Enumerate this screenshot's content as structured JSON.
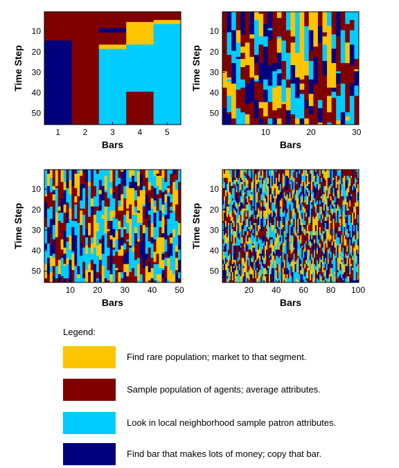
{
  "colors": {
    "rare": "#fcc500",
    "sample": "#800000",
    "local": "#00ccff",
    "copy": "#00007f"
  },
  "legend": {
    "title": "Legend:",
    "items": [
      {
        "key": "rare",
        "label": "Find rare population; market to that segment."
      },
      {
        "key": "sample",
        "label": "Sample population of agents; average attributes."
      },
      {
        "key": "local",
        "label": "Look in local neighborhood sample patron attributes."
      },
      {
        "key": "copy",
        "label": "Find bar that makes lots of money; copy that bar."
      }
    ]
  },
  "chart_data": [
    {
      "type": "heatmap",
      "xlabel": "Bars",
      "ylabel": "Time Step",
      "bars": 5,
      "steps": 55,
      "xlim": [
        0.5,
        5.5
      ],
      "ylim": [
        0.5,
        55.5
      ],
      "xticks": [
        1,
        2,
        3,
        4,
        5
      ],
      "yticks": [
        10,
        20,
        30,
        40,
        50
      ],
      "regions": [
        {
          "bar_from": 1,
          "bar_to": 5,
          "step_from": 1,
          "step_to": 55,
          "strategy": "sample"
        },
        {
          "bar_from": 1,
          "bar_to": 1,
          "step_from": 15,
          "step_to": 55,
          "strategy": "copy"
        },
        {
          "bar_from": 3,
          "bar_to": 5,
          "step_from": 19,
          "step_to": 55,
          "strategy": "local"
        },
        {
          "bar_from": 3,
          "bar_to": 3,
          "step_from": 17,
          "step_to": 18,
          "strategy": "rare"
        },
        {
          "bar_from": 3,
          "bar_to": 3,
          "step_from": 9,
          "step_to": 10,
          "strategy": "copy"
        },
        {
          "bar_from": 4,
          "bar_to": 4,
          "step_from": 6,
          "step_to": 16,
          "strategy": "rare"
        },
        {
          "bar_from": 4,
          "bar_to": 4,
          "step_from": 17,
          "step_to": 39,
          "strategy": "local"
        },
        {
          "bar_from": 4,
          "bar_to": 4,
          "step_from": 40,
          "step_to": 55,
          "strategy": "sample"
        },
        {
          "bar_from": 5,
          "bar_to": 5,
          "step_from": 5,
          "step_to": 6,
          "strategy": "rare"
        },
        {
          "bar_from": 5,
          "bar_to": 5,
          "step_from": 7,
          "step_to": 55,
          "strategy": "local"
        }
      ]
    },
    {
      "type": "heatmap",
      "xlabel": "Bars",
      "ylabel": "Time Step",
      "bars": 30,
      "steps": 55,
      "xlim": [
        0.5,
        30.5
      ],
      "ylim": [
        0.5,
        55.5
      ],
      "xticks": [
        10,
        20,
        30
      ],
      "yticks": [
        10,
        20,
        30,
        40,
        50
      ],
      "pattern": "random",
      "distribution": {
        "rare": 0.22,
        "sample": 0.3,
        "local": 0.28,
        "copy": 0.2
      },
      "run_length_steps": 6
    },
    {
      "type": "heatmap",
      "xlabel": "Bars",
      "ylabel": "Time Step",
      "bars": 50,
      "steps": 55,
      "xlim": [
        0.5,
        50.5
      ],
      "ylim": [
        0.5,
        55.5
      ],
      "xticks": [
        10,
        20,
        30,
        40,
        50
      ],
      "yticks": [
        10,
        20,
        30,
        40,
        50
      ],
      "pattern": "random",
      "distribution": {
        "rare": 0.22,
        "sample": 0.28,
        "local": 0.3,
        "copy": 0.2
      },
      "run_length_steps": 4
    },
    {
      "type": "heatmap",
      "xlabel": "Bars",
      "ylabel": "Time Step",
      "bars": 100,
      "steps": 55,
      "xlim": [
        0.5,
        100.5
      ],
      "ylim": [
        0.5,
        55.5
      ],
      "xticks": [
        20,
        40,
        60,
        80,
        100
      ],
      "yticks": [
        10,
        20,
        30,
        40,
        50
      ],
      "pattern": "random",
      "distribution": {
        "rare": 0.24,
        "sample": 0.3,
        "local": 0.26,
        "copy": 0.2
      },
      "run_length_steps": 2
    }
  ]
}
